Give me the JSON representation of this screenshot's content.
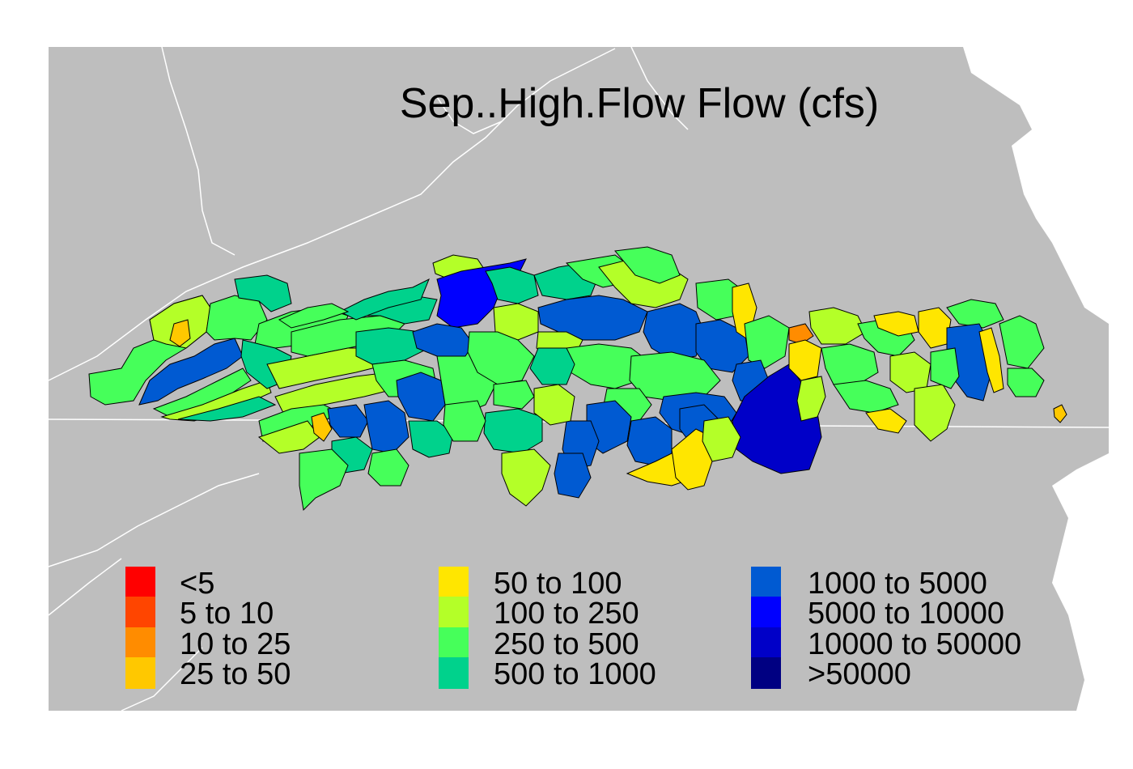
{
  "title": "Sep..High.Flow Flow (cfs)",
  "colors": {
    "background": "#bebebe",
    "boundary": "#ffffff",
    "water": "#ffffff",
    "basin_outline": "#000000"
  },
  "legend": {
    "columns": [
      [
        {
          "label": "<5",
          "color": "#ff0000"
        },
        {
          "label": "5 to 10",
          "color": "#ff4500"
        },
        {
          "label": "10 to 25",
          "color": "#ff8c00"
        },
        {
          "label": "25 to 50",
          "color": "#ffc800"
        }
      ],
      [
        {
          "label": "50 to 100",
          "color": "#ffe600"
        },
        {
          "label": "100 to 250",
          "color": "#b4ff28"
        },
        {
          "label": "250 to 500",
          "color": "#46ff5a"
        },
        {
          "label": "500 to 1000",
          "color": "#00d28c"
        }
      ],
      [
        {
          "label": "1000 to 5000",
          "color": "#005ad2"
        },
        {
          "label": "5000 to 10000",
          "color": "#0000ff"
        },
        {
          "label": "10000 to 50000",
          "color": "#0000c8"
        },
        {
          "label": ">50000",
          "color": "#000082"
        }
      ]
    ]
  }
}
